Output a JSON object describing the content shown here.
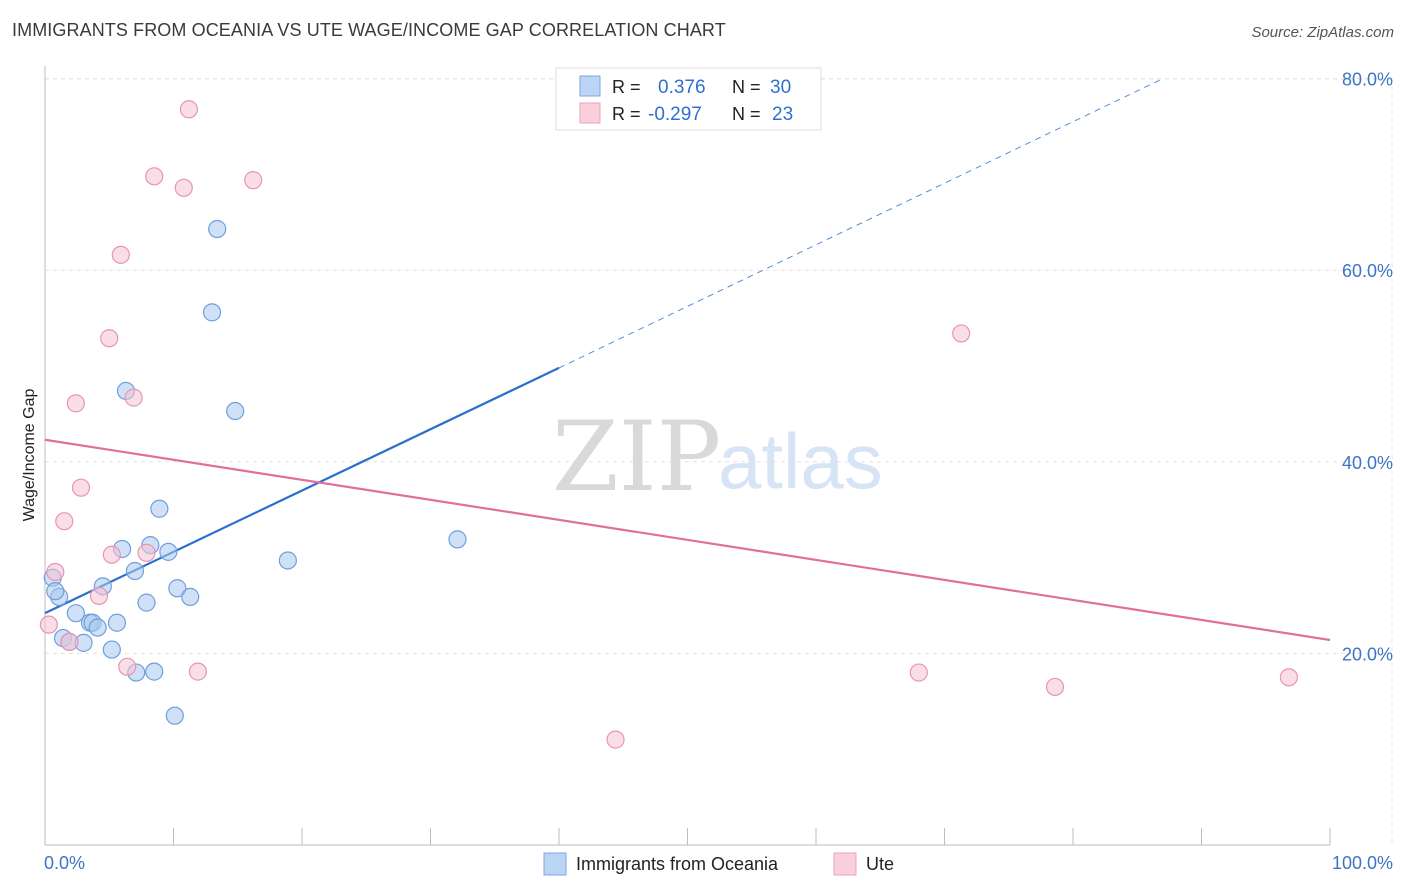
{
  "header": {
    "title": "IMMIGRANTS FROM OCEANIA VS UTE WAGE/INCOME GAP CORRELATION CHART",
    "source": "Source: ZipAtlas.com"
  },
  "watermark": {
    "zip": "ZIP",
    "atlas": "atlas"
  },
  "chart_data": {
    "type": "scatter",
    "title": "IMMIGRANTS FROM OCEANIA VS UTE WAGE/INCOME GAP CORRELATION CHART",
    "xlabel": "",
    "ylabel": "Wage/Income Gap",
    "xlim": [
      0,
      100
    ],
    "ylim": [
      0,
      85
    ],
    "x_tick_labels": {
      "left": "0.0%",
      "right": "100.0%"
    },
    "y_ticks": [
      20,
      40,
      60,
      80
    ],
    "y_tick_labels": [
      "20.0%",
      "40.0%",
      "60.0%",
      "80.0%"
    ],
    "grid": true,
    "legend": {
      "position": "top-center",
      "rows": [
        {
          "r_label": "R =",
          "r_value": "0.376",
          "n_label": "N =",
          "n_value": "30"
        },
        {
          "r_label": "R =",
          "r_value": "-0.297",
          "n_label": "N =",
          "n_value": "23"
        }
      ]
    },
    "series": [
      {
        "name": "Immigrants from Oceania",
        "color": "#a9c8f0",
        "stroke": "#6f9fdc",
        "trend_color": "#2a6fcf",
        "trend": {
          "x0": 0,
          "y0": 24.2,
          "x1": 40,
          "y1": 49.8,
          "dashed_to_x": 87,
          "dashed_to_y": 80.0
        },
        "points": [
          [
            0.6,
            27.9
          ],
          [
            1.1,
            25.9
          ],
          [
            1.4,
            21.6
          ],
          [
            1.9,
            21.2
          ],
          [
            2.4,
            24.2
          ],
          [
            3.0,
            21.1
          ],
          [
            3.5,
            23.2
          ],
          [
            3.7,
            23.2
          ],
          [
            4.1,
            22.7
          ],
          [
            4.5,
            27.0
          ],
          [
            5.2,
            20.4
          ],
          [
            5.6,
            23.2
          ],
          [
            6.0,
            30.9
          ],
          [
            6.3,
            47.4
          ],
          [
            7.0,
            28.6
          ],
          [
            7.1,
            18.0
          ],
          [
            7.9,
            25.3
          ],
          [
            8.2,
            31.3
          ],
          [
            8.5,
            18.1
          ],
          [
            8.9,
            35.1
          ],
          [
            9.6,
            30.6
          ],
          [
            10.1,
            13.5
          ],
          [
            10.3,
            26.8
          ],
          [
            11.3,
            25.9
          ],
          [
            13.0,
            55.6
          ],
          [
            13.4,
            64.3
          ],
          [
            14.8,
            45.3
          ],
          [
            18.9,
            29.7
          ],
          [
            32.1,
            31.9
          ],
          [
            0.8,
            26.5
          ]
        ]
      },
      {
        "name": "Ute",
        "color": "#f6c3d3",
        "stroke": "#e994b1",
        "trend_color": "#e0709a",
        "trend": {
          "x0": 0,
          "y0": 42.3,
          "x1": 100,
          "y1": 21.4
        },
        "points": [
          [
            0.3,
            23.0
          ],
          [
            0.8,
            28.5
          ],
          [
            1.5,
            33.8
          ],
          [
            1.9,
            21.2
          ],
          [
            2.4,
            46.1
          ],
          [
            2.8,
            37.3
          ],
          [
            4.2,
            26.0
          ],
          [
            5.2,
            30.3
          ],
          [
            5.9,
            61.6
          ],
          [
            6.4,
            18.6
          ],
          [
            5.0,
            52.9
          ],
          [
            6.9,
            46.7
          ],
          [
            7.9,
            30.5
          ],
          [
            8.5,
            69.8
          ],
          [
            10.8,
            68.6
          ],
          [
            11.2,
            76.8
          ],
          [
            11.9,
            18.1
          ],
          [
            16.2,
            69.4
          ],
          [
            44.4,
            11.0
          ],
          [
            68.0,
            18.0
          ],
          [
            71.3,
            53.4
          ],
          [
            78.6,
            16.5
          ],
          [
            96.8,
            17.5
          ]
        ]
      }
    ]
  }
}
